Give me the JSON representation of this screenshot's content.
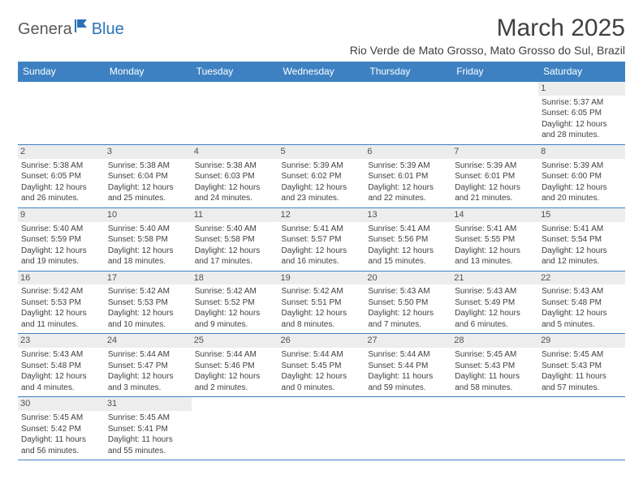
{
  "logo": {
    "part1": "Genera",
    "part2": "Blue"
  },
  "title": "March 2025",
  "location": "Rio Verde de Mato Grosso, Mato Grosso do Sul, Brazil",
  "colors": {
    "header_bg": "#3d81c2",
    "header_text": "#ffffff",
    "daynum_bg": "#ededed",
    "border": "#3d81c2",
    "logo_gray": "#5a5a5a",
    "logo_blue": "#2a72b5"
  },
  "weekdays": [
    "Sunday",
    "Monday",
    "Tuesday",
    "Wednesday",
    "Thursday",
    "Friday",
    "Saturday"
  ],
  "weeks": [
    [
      null,
      null,
      null,
      null,
      null,
      null,
      {
        "n": "1",
        "sr": "5:37 AM",
        "ss": "6:05 PM",
        "dl": "12 hours and 28 minutes."
      }
    ],
    [
      {
        "n": "2",
        "sr": "5:38 AM",
        "ss": "6:05 PM",
        "dl": "12 hours and 26 minutes."
      },
      {
        "n": "3",
        "sr": "5:38 AM",
        "ss": "6:04 PM",
        "dl": "12 hours and 25 minutes."
      },
      {
        "n": "4",
        "sr": "5:38 AM",
        "ss": "6:03 PM",
        "dl": "12 hours and 24 minutes."
      },
      {
        "n": "5",
        "sr": "5:39 AM",
        "ss": "6:02 PM",
        "dl": "12 hours and 23 minutes."
      },
      {
        "n": "6",
        "sr": "5:39 AM",
        "ss": "6:01 PM",
        "dl": "12 hours and 22 minutes."
      },
      {
        "n": "7",
        "sr": "5:39 AM",
        "ss": "6:01 PM",
        "dl": "12 hours and 21 minutes."
      },
      {
        "n": "8",
        "sr": "5:39 AM",
        "ss": "6:00 PM",
        "dl": "12 hours and 20 minutes."
      }
    ],
    [
      {
        "n": "9",
        "sr": "5:40 AM",
        "ss": "5:59 PM",
        "dl": "12 hours and 19 minutes."
      },
      {
        "n": "10",
        "sr": "5:40 AM",
        "ss": "5:58 PM",
        "dl": "12 hours and 18 minutes."
      },
      {
        "n": "11",
        "sr": "5:40 AM",
        "ss": "5:58 PM",
        "dl": "12 hours and 17 minutes."
      },
      {
        "n": "12",
        "sr": "5:41 AM",
        "ss": "5:57 PM",
        "dl": "12 hours and 16 minutes."
      },
      {
        "n": "13",
        "sr": "5:41 AM",
        "ss": "5:56 PM",
        "dl": "12 hours and 15 minutes."
      },
      {
        "n": "14",
        "sr": "5:41 AM",
        "ss": "5:55 PM",
        "dl": "12 hours and 13 minutes."
      },
      {
        "n": "15",
        "sr": "5:41 AM",
        "ss": "5:54 PM",
        "dl": "12 hours and 12 minutes."
      }
    ],
    [
      {
        "n": "16",
        "sr": "5:42 AM",
        "ss": "5:53 PM",
        "dl": "12 hours and 11 minutes."
      },
      {
        "n": "17",
        "sr": "5:42 AM",
        "ss": "5:53 PM",
        "dl": "12 hours and 10 minutes."
      },
      {
        "n": "18",
        "sr": "5:42 AM",
        "ss": "5:52 PM",
        "dl": "12 hours and 9 minutes."
      },
      {
        "n": "19",
        "sr": "5:42 AM",
        "ss": "5:51 PM",
        "dl": "12 hours and 8 minutes."
      },
      {
        "n": "20",
        "sr": "5:43 AM",
        "ss": "5:50 PM",
        "dl": "12 hours and 7 minutes."
      },
      {
        "n": "21",
        "sr": "5:43 AM",
        "ss": "5:49 PM",
        "dl": "12 hours and 6 minutes."
      },
      {
        "n": "22",
        "sr": "5:43 AM",
        "ss": "5:48 PM",
        "dl": "12 hours and 5 minutes."
      }
    ],
    [
      {
        "n": "23",
        "sr": "5:43 AM",
        "ss": "5:48 PM",
        "dl": "12 hours and 4 minutes."
      },
      {
        "n": "24",
        "sr": "5:44 AM",
        "ss": "5:47 PM",
        "dl": "12 hours and 3 minutes."
      },
      {
        "n": "25",
        "sr": "5:44 AM",
        "ss": "5:46 PM",
        "dl": "12 hours and 2 minutes."
      },
      {
        "n": "26",
        "sr": "5:44 AM",
        "ss": "5:45 PM",
        "dl": "12 hours and 0 minutes."
      },
      {
        "n": "27",
        "sr": "5:44 AM",
        "ss": "5:44 PM",
        "dl": "11 hours and 59 minutes."
      },
      {
        "n": "28",
        "sr": "5:45 AM",
        "ss": "5:43 PM",
        "dl": "11 hours and 58 minutes."
      },
      {
        "n": "29",
        "sr": "5:45 AM",
        "ss": "5:43 PM",
        "dl": "11 hours and 57 minutes."
      }
    ],
    [
      {
        "n": "30",
        "sr": "5:45 AM",
        "ss": "5:42 PM",
        "dl": "11 hours and 56 minutes."
      },
      {
        "n": "31",
        "sr": "5:45 AM",
        "ss": "5:41 PM",
        "dl": "11 hours and 55 minutes."
      },
      null,
      null,
      null,
      null,
      null
    ]
  ],
  "labels": {
    "sunrise": "Sunrise:",
    "sunset": "Sunset:",
    "daylight": "Daylight:"
  }
}
